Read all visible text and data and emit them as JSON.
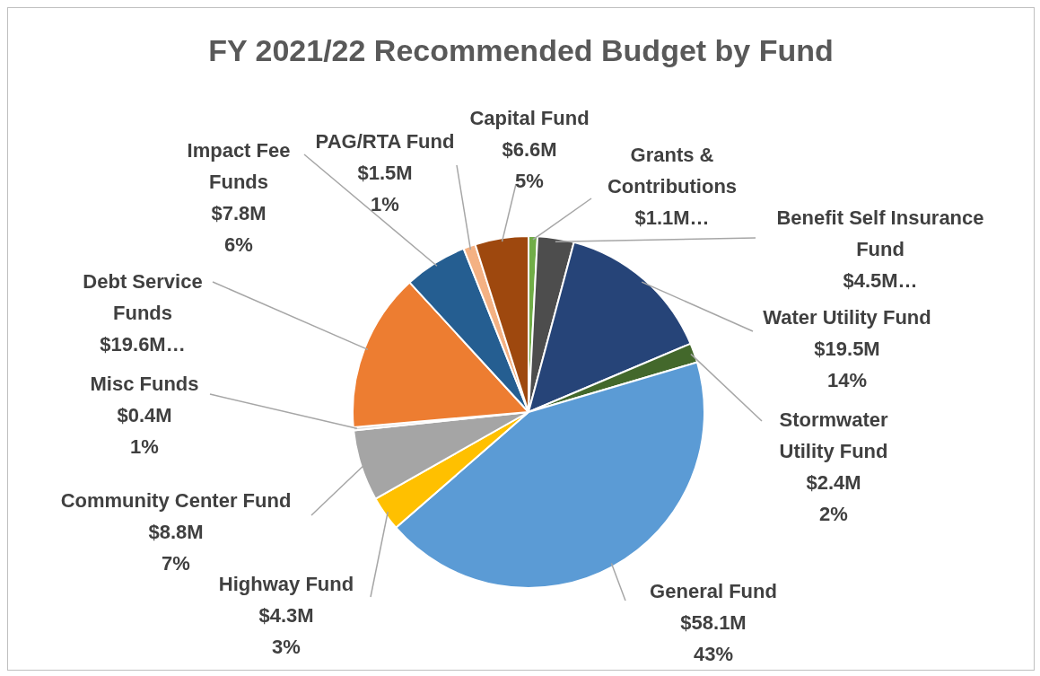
{
  "chart_data": {
    "type": "pie",
    "title": "FY 2021/22 Recommended Budget by Fund",
    "categories": [
      "Grants & Contributions",
      "Benefit Self Insurance Fund",
      "Water Utility Fund",
      "Stormwater Utility Fund",
      "General Fund",
      "Highway Fund",
      "Community Center Fund",
      "Misc Funds",
      "Debt Service Funds",
      "Impact Fee Funds",
      "PAG/RTA Fund",
      "Capital Fund"
    ],
    "values": [
      1.1,
      4.5,
      19.5,
      2.4,
      58.1,
      4.3,
      8.8,
      0.4,
      19.6,
      7.8,
      1.5,
      6.6
    ],
    "value_labels": [
      "$1.1M…",
      "$4.5M…",
      "$19.5M",
      "$2.4M",
      "$58.1M",
      "$4.3M",
      "$8.8M",
      "$0.4M",
      "$19.6M…",
      "$7.8M",
      "$1.5M",
      "$6.6M"
    ],
    "annotations": [
      {
        "text": "14%",
        "x": "Water Utility Fund"
      },
      {
        "text": "2%",
        "x": "Stormwater Utility Fund"
      },
      {
        "text": "43%",
        "x": "General Fund"
      },
      {
        "text": "3%",
        "x": "Highway Fund"
      },
      {
        "text": "7%",
        "x": "Community Center Fund"
      },
      {
        "text": "1%",
        "x": "Misc Funds"
      },
      {
        "text": "6%",
        "x": "Impact Fee Funds"
      },
      {
        "text": "1%",
        "x": "PAG/RTA Fund"
      },
      {
        "text": "5%",
        "x": "Capital Fund"
      }
    ],
    "colors": [
      "#70ad47",
      "#4d4d4d",
      "#264478",
      "#43682b",
      "#5b9bd5",
      "#ffc000",
      "#a5a5a5",
      "#d9d9d9",
      "#ed7d31",
      "#255e91",
      "#f4b183",
      "#9e480e"
    ]
  }
}
